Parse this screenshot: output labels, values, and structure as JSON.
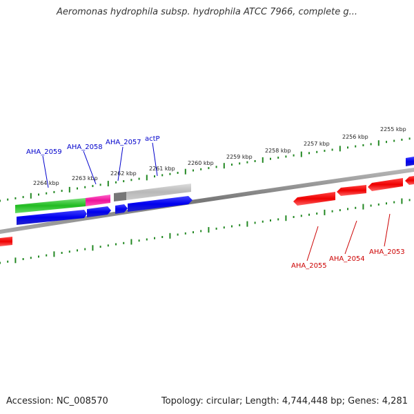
{
  "title": "Aeromonas hydrophila subsp. hydrophila ATCC 7966, complete g...",
  "accession_label": "Accession: NC_008570",
  "topology_label": "Topology: circular; Length: 4,744,448 bp; Genes: 4,281",
  "colors": {
    "forward_gene": "#0000ee",
    "reverse_gene": "#ee0000",
    "gene_label_forward": "#0000cc",
    "gene_label_reverse": "#cc0000",
    "tick": "#228822",
    "backbone": "#888888"
  },
  "kbp_ticks": [
    "2264 kbp",
    "2263 kbp",
    "2262 kbp",
    "2261 kbp",
    "2260 kbp",
    "2259 kbp",
    "2258 kbp",
    "2257 kbp",
    "2256 kbp",
    "2255 kbp"
  ],
  "forward_gene_labels": [
    "AHA_2059",
    "AHA_2058",
    "AHA_2057",
    "actP"
  ],
  "reverse_gene_labels": [
    "AHA_2055",
    "AHA_2054",
    "AHA_2053"
  ]
}
